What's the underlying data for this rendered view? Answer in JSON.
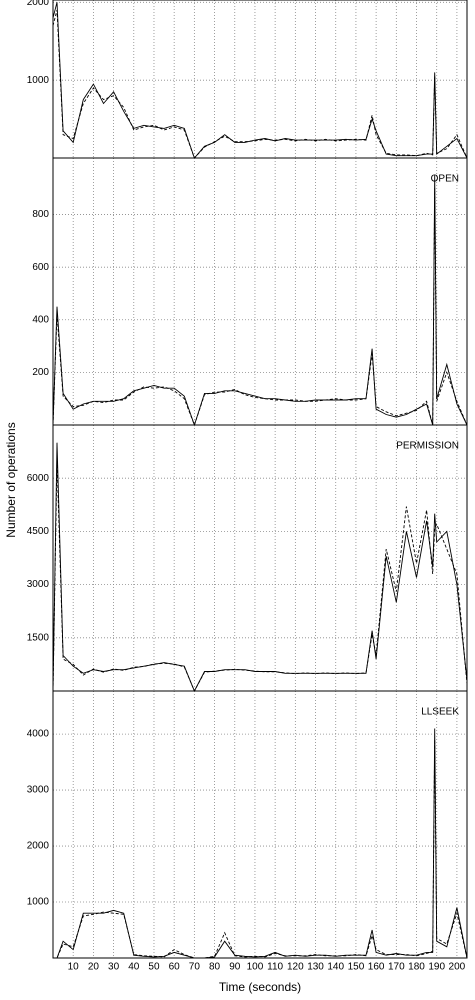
{
  "ylabel": "Number of operations",
  "chart_data": [
    {
      "type": "line",
      "x": [
        0,
        2,
        5,
        10,
        15,
        20,
        25,
        30,
        35,
        40,
        45,
        50,
        55,
        60,
        65,
        70,
        75,
        80,
        85,
        90,
        95,
        100,
        105,
        110,
        115,
        120,
        125,
        130,
        135,
        140,
        145,
        150,
        155,
        158,
        160,
        165,
        170,
        175,
        180,
        185,
        188,
        189,
        190,
        195,
        200,
        205
      ],
      "series": [
        {
          "color": "#000000",
          "line_style": "solid",
          "values": [
            1800,
            2000,
            350,
            200,
            750,
            950,
            700,
            850,
            600,
            380,
            420,
            400,
            380,
            420,
            380,
            0,
            150,
            200,
            300,
            200,
            200,
            230,
            250,
            220,
            250,
            230,
            230,
            230,
            230,
            230,
            240,
            230,
            240,
            500,
            350,
            50,
            30,
            30,
            30,
            50,
            50,
            1100,
            50,
            150,
            250,
            0
          ]
        },
        {
          "color": "#000000",
          "line_style": "dashed",
          "values": [
            1700,
            1900,
            300,
            250,
            700,
            900,
            750,
            800,
            650,
            360,
            400,
            420,
            360,
            400,
            360,
            0,
            140,
            210,
            280,
            210,
            210,
            220,
            240,
            230,
            240,
            220,
            240,
            220,
            240,
            220,
            230,
            240,
            230,
            550,
            300,
            60,
            40,
            40,
            30,
            60,
            40,
            1050,
            60,
            120,
            300,
            0
          ]
        }
      ],
      "xlim": [
        0,
        205
      ],
      "xticks": [
        10,
        20,
        30,
        40,
        50,
        60,
        70,
        80,
        90,
        100,
        110,
        120,
        130,
        140,
        150,
        160,
        170,
        180,
        190,
        200
      ],
      "ylim": [
        0,
        2030
      ],
      "yticks": [
        1000,
        2000
      ],
      "grid": true
    },
    {
      "type": "line",
      "title": "OPEN",
      "x": [
        0,
        2,
        5,
        10,
        15,
        20,
        25,
        30,
        35,
        40,
        45,
        50,
        55,
        60,
        65,
        70,
        75,
        80,
        85,
        90,
        95,
        100,
        105,
        110,
        115,
        120,
        125,
        130,
        135,
        140,
        145,
        150,
        155,
        158,
        160,
        165,
        170,
        175,
        180,
        185,
        188,
        189,
        190,
        195,
        200,
        205
      ],
      "series": [
        {
          "color": "#000000",
          "line_style": "solid",
          "values": [
            0,
            450,
            120,
            60,
            80,
            90,
            90,
            90,
            100,
            130,
            140,
            150,
            140,
            140,
            110,
            0,
            120,
            120,
            130,
            130,
            120,
            110,
            100,
            100,
            95,
            90,
            90,
            95,
            95,
            95,
            95,
            100,
            100,
            290,
            60,
            40,
            30,
            40,
            60,
            80,
            0,
            950,
            100,
            230,
            80,
            0
          ]
        },
        {
          "color": "#000000",
          "line_style": "dashed",
          "values": [
            0,
            420,
            110,
            70,
            75,
            90,
            85,
            95,
            95,
            125,
            145,
            140,
            145,
            130,
            100,
            0,
            115,
            125,
            125,
            135,
            115,
            105,
            100,
            95,
            95,
            95,
            90,
            90,
            95,
            100,
            95,
            95,
            100,
            270,
            70,
            50,
            35,
            45,
            55,
            90,
            0,
            900,
            90,
            200,
            90,
            0
          ]
        }
      ],
      "xlim": [
        0,
        205
      ],
      "xticks": [
        10,
        20,
        30,
        40,
        50,
        60,
        70,
        80,
        90,
        100,
        110,
        120,
        130,
        140,
        150,
        160,
        170,
        180,
        190,
        200
      ],
      "ylim": [
        0,
        1015
      ],
      "yticks": [
        200,
        400,
        600,
        800
      ],
      "grid": true
    },
    {
      "type": "line",
      "title": "PERMISSION",
      "x": [
        0,
        2,
        5,
        10,
        15,
        20,
        25,
        30,
        35,
        40,
        45,
        50,
        55,
        60,
        65,
        70,
        75,
        80,
        85,
        90,
        95,
        100,
        105,
        110,
        115,
        120,
        125,
        130,
        135,
        140,
        145,
        150,
        155,
        158,
        160,
        165,
        170,
        175,
        180,
        185,
        188,
        189,
        190,
        195,
        200,
        205
      ],
      "series": [
        {
          "color": "#000000",
          "line_style": "solid",
          "values": [
            0,
            7000,
            1000,
            700,
            500,
            600,
            550,
            600,
            600,
            650,
            700,
            750,
            800,
            750,
            700,
            0,
            550,
            550,
            600,
            600,
            600,
            550,
            550,
            550,
            500,
            500,
            500,
            500,
            500,
            500,
            500,
            500,
            500,
            1700,
            900,
            3800,
            2500,
            4500,
            3200,
            4800,
            3500,
            5000,
            4200,
            4500,
            3000,
            300
          ]
        },
        {
          "color": "#000000",
          "line_style": "dashed",
          "values": [
            0,
            6500,
            900,
            750,
            450,
            620,
            530,
            620,
            580,
            670,
            690,
            760,
            780,
            760,
            680,
            0,
            530,
            560,
            590,
            610,
            590,
            560,
            540,
            540,
            510,
            490,
            510,
            490,
            510,
            490,
            510,
            490,
            510,
            1600,
            1000,
            4000,
            2800,
            5200,
            3600,
            5100,
            3300,
            4600,
            4700,
            4000,
            3300,
            200
          ]
        }
      ],
      "xlim": [
        0,
        205
      ],
      "xticks": [
        10,
        20,
        30,
        40,
        50,
        60,
        70,
        80,
        90,
        100,
        110,
        120,
        130,
        140,
        150,
        160,
        170,
        180,
        190,
        200
      ],
      "ylim": [
        0,
        7500
      ],
      "yticks": [
        1500,
        3000,
        4500,
        6000
      ],
      "grid": true
    },
    {
      "type": "line",
      "title": "LLSEEK",
      "xlabel": "Time (seconds)",
      "x": [
        0,
        2,
        5,
        10,
        15,
        20,
        25,
        30,
        35,
        40,
        45,
        50,
        55,
        60,
        65,
        70,
        75,
        80,
        85,
        90,
        95,
        100,
        105,
        110,
        115,
        120,
        125,
        130,
        135,
        140,
        145,
        150,
        155,
        158,
        160,
        165,
        170,
        175,
        180,
        185,
        188,
        189,
        190,
        195,
        200,
        205
      ],
      "series": [
        {
          "color": "#000000",
          "line_style": "solid",
          "values": [
            0,
            0,
            300,
            150,
            800,
            800,
            800,
            850,
            800,
            50,
            30,
            20,
            30,
            100,
            50,
            0,
            0,
            20,
            300,
            50,
            30,
            20,
            30,
            100,
            30,
            50,
            30,
            50,
            50,
            30,
            50,
            50,
            50,
            500,
            100,
            50,
            80,
            50,
            50,
            100,
            100,
            4100,
            300,
            200,
            900,
            0
          ]
        },
        {
          "color": "#000000",
          "line_style": "dashed",
          "values": [
            0,
            0,
            250,
            200,
            750,
            780,
            820,
            800,
            780,
            60,
            40,
            30,
            20,
            150,
            60,
            0,
            0,
            30,
            450,
            40,
            20,
            30,
            20,
            80,
            40,
            40,
            40,
            60,
            40,
            40,
            40,
            60,
            40,
            400,
            150,
            60,
            60,
            60,
            40,
            80,
            120,
            3900,
            350,
            250,
            800,
            0
          ]
        }
      ],
      "xlim": [
        0,
        205
      ],
      "xticks": [
        10,
        20,
        30,
        40,
        50,
        60,
        70,
        80,
        90,
        100,
        110,
        120,
        130,
        140,
        150,
        160,
        170,
        180,
        190,
        200
      ],
      "ylim": [
        0,
        4770
      ],
      "yticks": [
        1000,
        2000,
        3000,
        4000
      ],
      "grid": true
    }
  ]
}
